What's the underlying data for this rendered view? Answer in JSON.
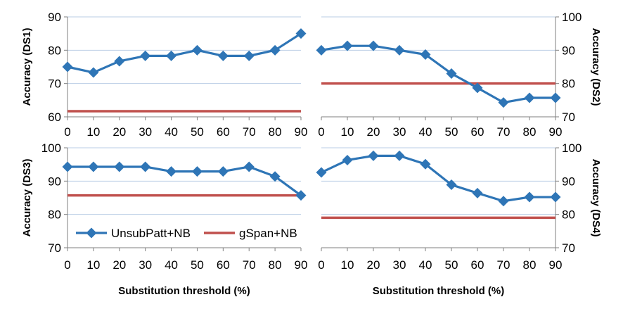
{
  "chart_data": [
    {
      "type": "line",
      "panel": "top-left",
      "ylabel": "Accuracy (DS1)",
      "xlabel": "",
      "ylim": [
        60,
        90
      ],
      "yticks": [
        60,
        70,
        80,
        90
      ],
      "categories": [
        "0",
        "10",
        "20",
        "30",
        "40",
        "50",
        "60",
        "70",
        "80",
        "90"
      ],
      "grid": true,
      "series": [
        {
          "name": "UnsubPatt+NB",
          "color": "#2e75b6",
          "marker": "diamond",
          "values": [
            75.0,
            73.3,
            76.7,
            78.3,
            78.3,
            80.0,
            78.3,
            78.3,
            80.0,
            85.0
          ]
        },
        {
          "name": "gSpan+NB",
          "color": "#c0504d",
          "values": [
            61.7,
            61.7,
            61.7,
            61.7,
            61.7,
            61.7,
            61.7,
            61.7,
            61.7,
            61.7
          ]
        }
      ]
    },
    {
      "type": "line",
      "panel": "top-right",
      "ylabel": "Accuracy (DS2)",
      "xlabel": "",
      "ylim": [
        70,
        100
      ],
      "yticks": [
        70,
        80,
        90,
        100
      ],
      "categories": [
        "0",
        "10",
        "20",
        "30",
        "40",
        "50",
        "60",
        "70",
        "80",
        "90"
      ],
      "grid": true,
      "series": [
        {
          "name": "UnsubPatt+NB",
          "color": "#2e75b6",
          "marker": "diamond",
          "values": [
            90.0,
            91.3,
            91.3,
            90.0,
            88.7,
            83.0,
            78.7,
            74.3,
            75.7,
            75.7
          ]
        },
        {
          "name": "gSpan+NB",
          "color": "#c0504d",
          "values": [
            80.0,
            80.0,
            80.0,
            80.0,
            80.0,
            80.0,
            80.0,
            80.0,
            80.0,
            80.0
          ]
        }
      ]
    },
    {
      "type": "line",
      "panel": "bottom-left",
      "ylabel": "Accuracy (DS3)",
      "xlabel": "Substitution threshold (%)",
      "ylim": [
        70,
        100
      ],
      "yticks": [
        70,
        80,
        90,
        100
      ],
      "categories": [
        "0",
        "10",
        "20",
        "30",
        "40",
        "50",
        "60",
        "70",
        "80",
        "90"
      ],
      "grid": true,
      "legend": "lower-left",
      "series": [
        {
          "name": "UnsubPatt+NB",
          "color": "#2e75b6",
          "marker": "diamond",
          "values": [
            94.3,
            94.3,
            94.3,
            94.3,
            92.9,
            92.9,
            92.9,
            94.3,
            91.4,
            85.7
          ]
        },
        {
          "name": "gSpan+NB",
          "color": "#c0504d",
          "values": [
            85.7,
            85.7,
            85.7,
            85.7,
            85.7,
            85.7,
            85.7,
            85.7,
            85.7,
            85.7
          ]
        }
      ]
    },
    {
      "type": "line",
      "panel": "bottom-right",
      "ylabel": "Accuracy (DS4)",
      "xlabel": "Substitution threshold (%)",
      "ylim": [
        70,
        100
      ],
      "yticks": [
        70,
        80,
        90,
        100
      ],
      "categories": [
        "0",
        "10",
        "20",
        "30",
        "40",
        "50",
        "60",
        "70",
        "80",
        "90"
      ],
      "grid": true,
      "series": [
        {
          "name": "UnsubPatt+NB",
          "color": "#2e75b6",
          "marker": "diamond",
          "values": [
            92.6,
            96.3,
            97.6,
            97.6,
            95.1,
            88.9,
            86.4,
            84.0,
            85.2,
            85.2
          ]
        },
        {
          "name": "gSpan+NB",
          "color": "#c0504d",
          "values": [
            79.0,
            79.0,
            79.0,
            79.0,
            79.0,
            79.0,
            79.0,
            79.0,
            79.0,
            79.0
          ]
        }
      ]
    }
  ]
}
